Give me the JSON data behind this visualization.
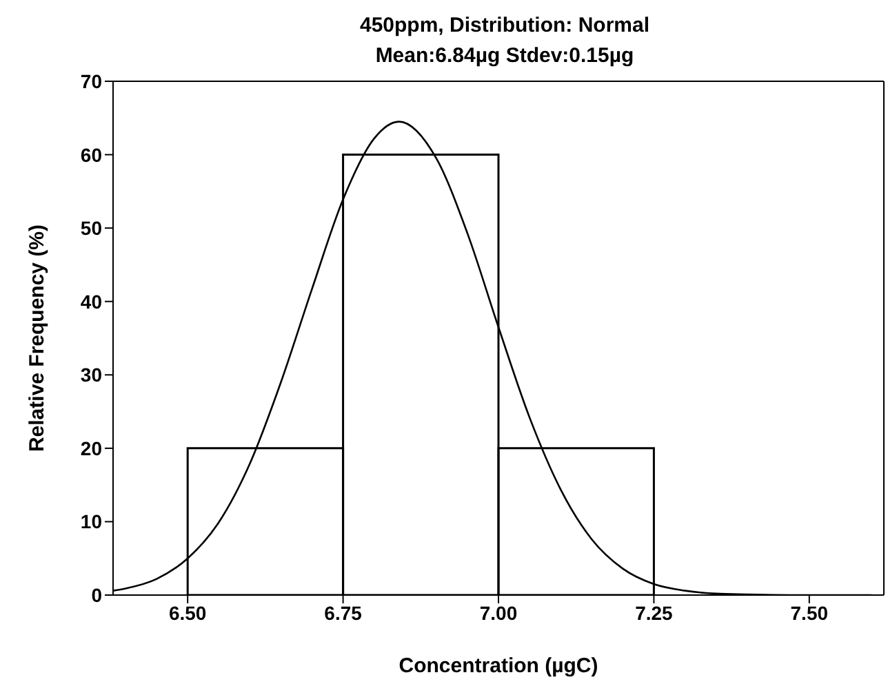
{
  "chart_data": {
    "type": "histogram",
    "title": "450ppm, Distribution: Normal",
    "subtitle": "Mean:6.84µg  Stdev:0.15µg",
    "xlabel": "Concentration (µgC)",
    "ylabel": "Relative Frequency (%)",
    "bins": [
      6.5,
      6.75,
      7.0,
      7.25
    ],
    "values": [
      20,
      60,
      20
    ],
    "color": "#000000",
    "series": [
      {
        "type": "line",
        "color": "#000000",
        "x": [
          6.38,
          6.4,
          6.45,
          6.5,
          6.55,
          6.6,
          6.65,
          6.7,
          6.75,
          6.8,
          6.84,
          6.9,
          6.95,
          7.0,
          7.05,
          7.1,
          7.15,
          7.2,
          7.25,
          7.3,
          7.35,
          7.4,
          7.5,
          7.6
        ],
        "values": [
          0.6,
          0.9,
          2.2,
          5,
          9.9,
          17.9,
          29,
          41.7,
          53.9,
          62.2,
          64.5,
          59.5,
          49.3,
          36.5,
          24.2,
          14.4,
          7.6,
          3.6,
          1.5,
          0.6,
          0.2,
          0.1,
          0,
          0
        ]
      }
    ],
    "xlim": [
      6.38,
      7.62
    ],
    "xticks": [
      {
        "value": 6.5,
        "label": "6.50"
      },
      {
        "value": 6.75,
        "label": "6.75"
      },
      {
        "value": 7.0,
        "label": "7.00"
      },
      {
        "value": 7.25,
        "label": "7.25"
      },
      {
        "value": 7.5,
        "label": "7.50"
      }
    ],
    "ylim": [
      0,
      70
    ],
    "yticks": [
      0,
      10,
      20,
      30,
      40,
      50,
      60,
      70
    ],
    "grid": false,
    "marker": "none",
    "line_style": "solid"
  }
}
